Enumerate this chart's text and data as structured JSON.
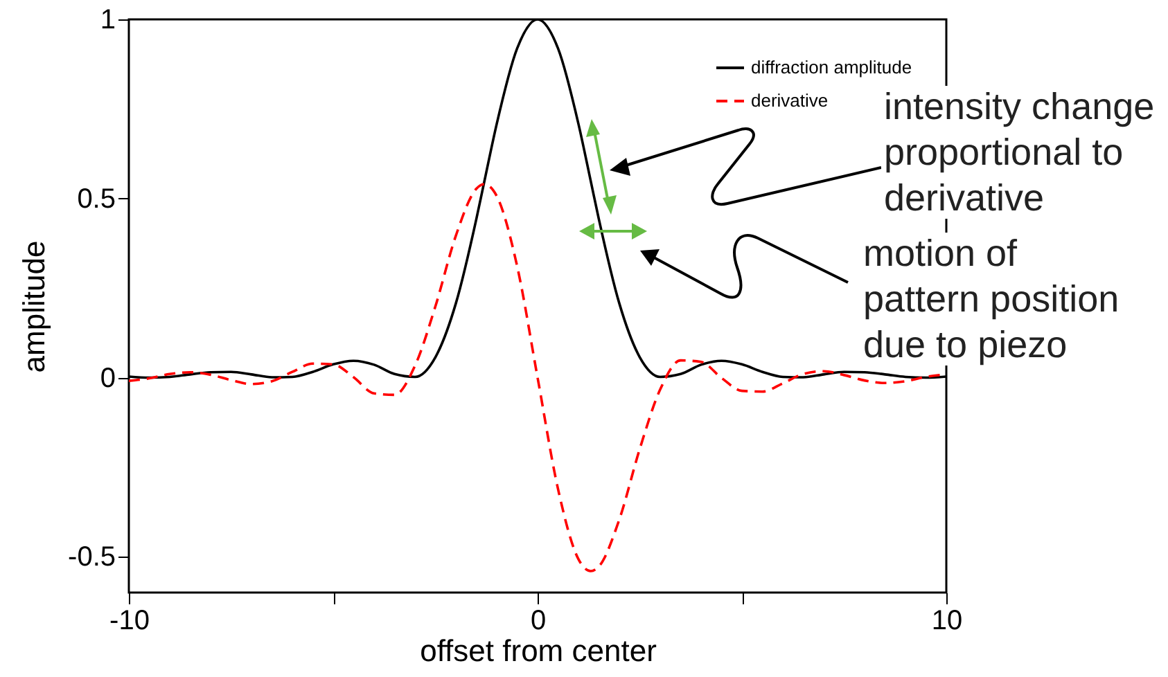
{
  "chart_data": {
    "type": "line",
    "xlabel": "offset from center",
    "ylabel": "amplitude",
    "x": [
      -10,
      -9.5,
      -9,
      -8.5,
      -8,
      -7.5,
      -7,
      -6.5,
      -6,
      -5.5,
      -5,
      -4.5,
      -4,
      -3.5,
      -3,
      -2.5,
      -2,
      -1.5,
      -1.3,
      -1,
      -0.5,
      0,
      0.5,
      1,
      1.3,
      1.5,
      2,
      2.5,
      3,
      3.5,
      4,
      4.5,
      5,
      5.5,
      6,
      6.5,
      7,
      7.5,
      8,
      8.5,
      9,
      9.5,
      10
    ],
    "series": [
      {
        "name": "diffraction amplitude",
        "color": "#000000",
        "line_style": "solid",
        "values": [
          0.003,
          0.0,
          0.002,
          0.009,
          0.015,
          0.016,
          0.009,
          0.001,
          0.002,
          0.016,
          0.037,
          0.047,
          0.036,
          0.01,
          0.002,
          0.057,
          0.207,
          0.442,
          0.549,
          0.708,
          0.919,
          1,
          0.919,
          0.708,
          0.549,
          0.442,
          0.207,
          0.057,
          0.002,
          0.01,
          0.036,
          0.047,
          0.037,
          0.016,
          0.002,
          0.001,
          0.009,
          0.016,
          0.015,
          0.009,
          0.002,
          0.0,
          0.003
        ]
      },
      {
        "name": "derivative",
        "color": "#ff0000",
        "line_style": "dashed",
        "values": [
          -0.009,
          -0.002,
          0.01,
          0.015,
          0.008,
          -0.007,
          -0.018,
          -0.01,
          0.016,
          0.039,
          0.037,
          0.001,
          -0.044,
          -0.048,
          0.033,
          0.199,
          0.396,
          0.527,
          0.54,
          0.507,
          0.311,
          0,
          -0.311,
          -0.507,
          -0.54,
          -0.527,
          -0.396,
          -0.199,
          -0.033,
          0.048,
          0.044,
          -0.001,
          -0.037,
          -0.039,
          -0.016,
          0.01,
          0.018,
          0.007,
          -0.008,
          -0.015,
          -0.01,
          0.002,
          0.009
        ]
      }
    ],
    "xlim": [
      -10,
      10
    ],
    "xticks": [
      -10,
      {
        "value": -5,
        "label": null
      },
      0,
      {
        "value": 5,
        "label": null
      },
      10
    ],
    "ylim": [
      -0.6,
      1
    ],
    "yticks": [
      -0.5,
      0,
      0.5,
      1
    ],
    "grid": false,
    "legend": "top right",
    "annotations": [
      "intensity change\nproportional to\nderivative",
      "motion of\npattern position\ndue to piezo"
    ]
  }
}
